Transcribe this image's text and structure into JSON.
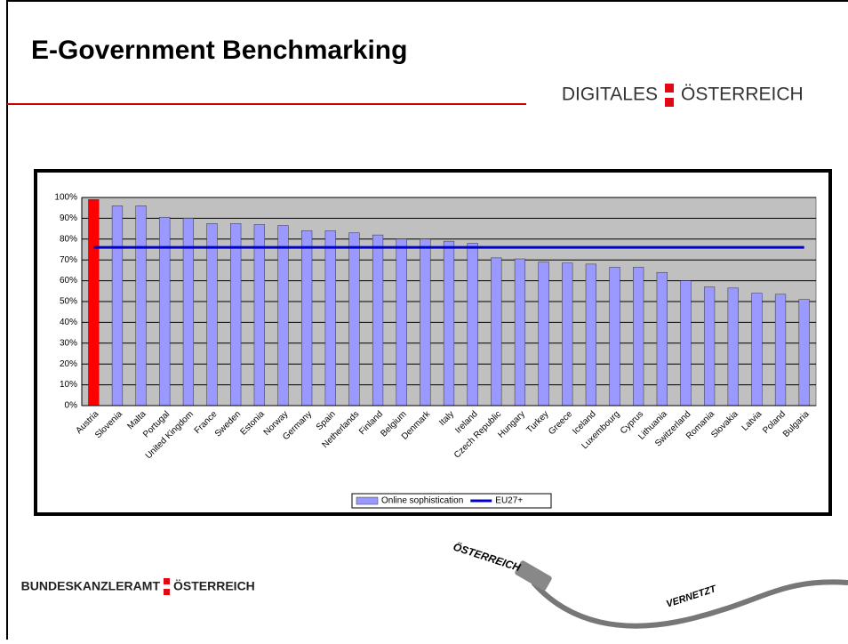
{
  "header": {
    "title": "E-Government Benchmarking",
    "brand_left": "DIGITALES",
    "brand_right": "ÖSTERREICH"
  },
  "footer": {
    "brand_left": "BUNDESKANZLERAMT",
    "brand_right": "ÖSTERREICH",
    "cable_top": "ÖSTERREICH",
    "cable_bottom": "VERNETZT"
  },
  "chart_data": {
    "type": "bar",
    "categories": [
      "Austria",
      "Slovenia",
      "Malta",
      "Portugal",
      "United Kingdom",
      "France",
      "Sweden",
      "Estonia",
      "Norway",
      "Germany",
      "Spain",
      "Netherlands",
      "Finland",
      "Belgium",
      "Denmark",
      "Italy",
      "Ireland",
      "Czech Republic",
      "Hungary",
      "Turkey",
      "Greece",
      "Iceland",
      "Luxembourg",
      "Cyprus",
      "Lithuania",
      "Switzerland",
      "Romania",
      "Slovakia",
      "Latvia",
      "Poland",
      "Bulgaria"
    ],
    "series": [
      {
        "name": "Online sophistication",
        "type": "bar",
        "color": "#9999ff",
        "values": [
          99,
          96,
          96,
          90.5,
          90,
          87.5,
          87.5,
          87,
          86.5,
          84,
          84,
          83,
          82,
          80,
          80,
          79,
          78,
          71,
          70.5,
          69,
          68.5,
          68,
          66.5,
          66.5,
          64,
          60,
          57,
          56.5,
          54,
          53.5,
          51
        ]
      },
      {
        "name": "EU27+",
        "type": "line",
        "color": "#0000cc",
        "values": [
          76,
          76,
          76,
          76,
          76,
          76,
          76,
          76,
          76,
          76,
          76,
          76,
          76,
          76,
          76,
          76,
          76,
          76,
          76,
          76,
          76,
          76,
          76,
          76,
          76,
          76,
          76,
          76,
          76,
          76,
          76
        ]
      }
    ],
    "highlight": {
      "index": 0,
      "color": "#ff0000"
    },
    "ylim": [
      0,
      100
    ],
    "yticks": [
      {
        "value": 0,
        "label": "0%"
      },
      {
        "value": 10,
        "label": "10%"
      },
      {
        "value": 20,
        "label": "20%"
      },
      {
        "value": 30,
        "label": "30%"
      },
      {
        "value": 40,
        "label": "40%"
      },
      {
        "value": 50,
        "label": "50%"
      },
      {
        "value": 60,
        "label": "60%"
      },
      {
        "value": 70,
        "label": "70%"
      },
      {
        "value": 80,
        "label": "80%"
      },
      {
        "value": 90,
        "label": "90%"
      },
      {
        "value": 100,
        "label": "100%"
      }
    ],
    "grid": true,
    "plot_background": "#c0c0c0",
    "legend": "bottom"
  }
}
